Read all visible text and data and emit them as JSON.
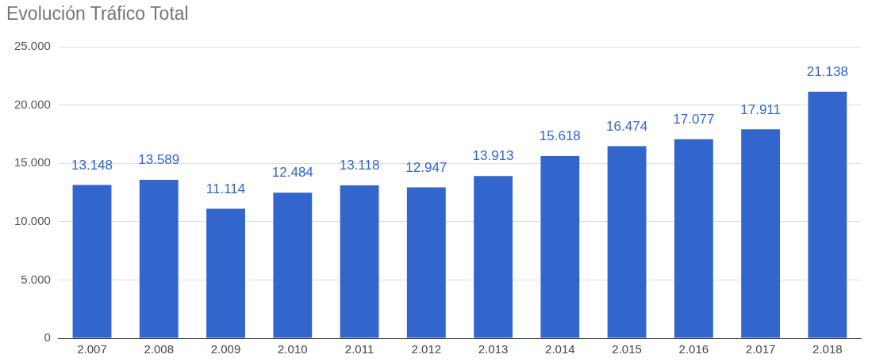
{
  "chart_data": {
    "type": "bar",
    "title": "Evolución Tráfico Total",
    "categories": [
      "2.007",
      "2.008",
      "2.009",
      "2.010",
      "2.011",
      "2.012",
      "2.013",
      "2.014",
      "2.015",
      "2.016",
      "2.017",
      "2.018"
    ],
    "values": [
      13148,
      13589,
      11114,
      12484,
      13118,
      12947,
      13913,
      15618,
      16474,
      17077,
      17911,
      21138
    ],
    "value_labels": [
      "13.148",
      "13.589",
      "11.114",
      "12.484",
      "13.118",
      "12.947",
      "13.913",
      "15.618",
      "16.474",
      "17.077",
      "17.911",
      "21.138"
    ],
    "color": "#3366cc",
    "ylim": [
      0,
      25000
    ],
    "yticks": [
      0,
      {
        "value": 5000,
        "label": "5.000"
      },
      {
        "value": 10000,
        "label": "10.000"
      },
      {
        "value": 15000,
        "label": "15.000"
      },
      {
        "value": 20000,
        "label": "20.000"
      },
      {
        "value": 25000,
        "label": "25.000"
      }
    ],
    "grid": "y",
    "legend": false
  }
}
